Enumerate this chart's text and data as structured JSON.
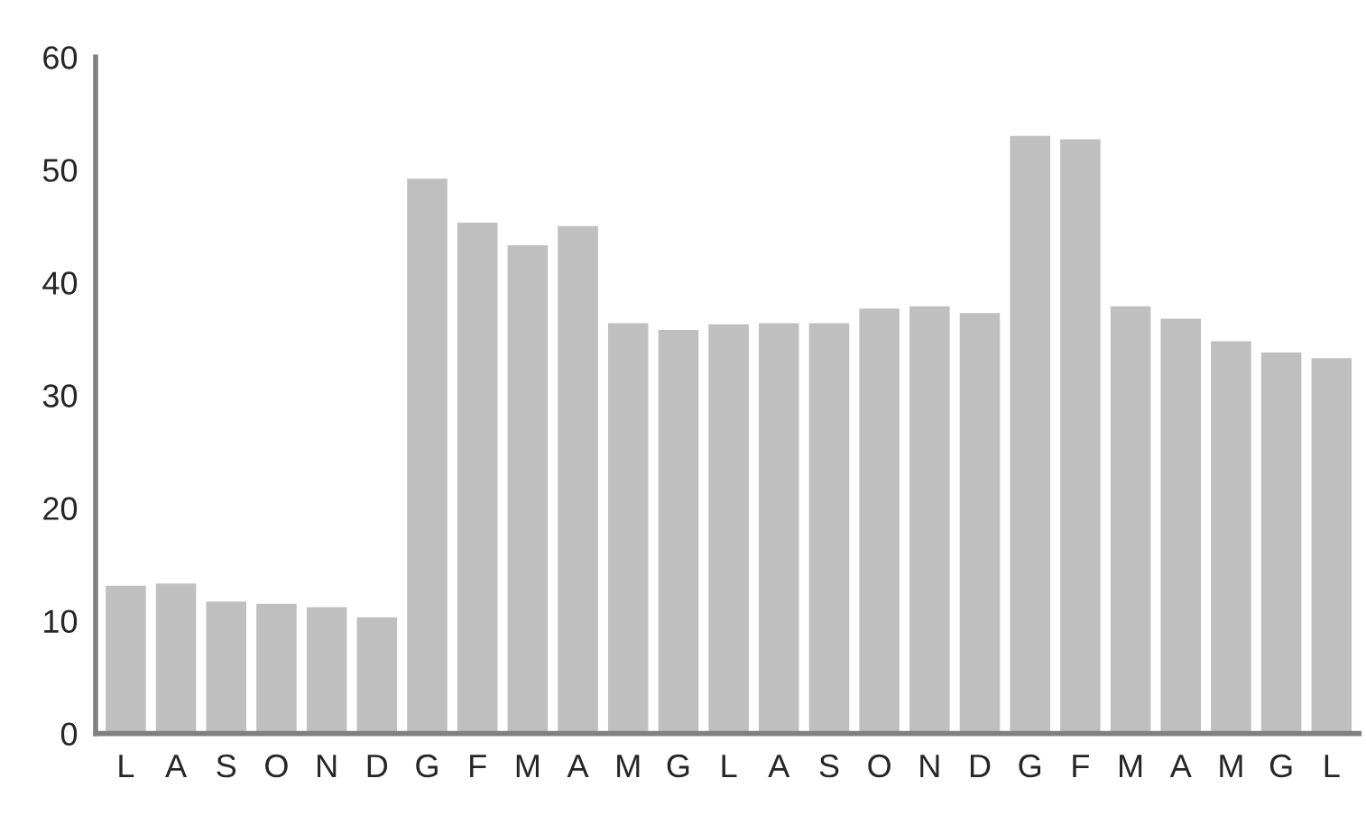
{
  "chart_data": {
    "type": "bar",
    "categories": [
      "L",
      "A",
      "S",
      "O",
      "N",
      "D",
      "G",
      "F",
      "M",
      "A",
      "M",
      "G",
      "L",
      "A",
      "S",
      "O",
      "N",
      "D",
      "G",
      "F",
      "M",
      "A",
      "M",
      "G",
      "L"
    ],
    "values": [
      13.1,
      13.3,
      11.7,
      11.5,
      11.2,
      10.3,
      49.2,
      45.3,
      43.3,
      45.0,
      36.4,
      35.8,
      36.3,
      36.4,
      36.4,
      37.7,
      37.9,
      37.3,
      53.0,
      52.7,
      37.9,
      36.8,
      34.8,
      33.8,
      33.3
    ],
    "color": "#bfbfbf",
    "ylim": [
      0,
      60
    ],
    "yticks": [
      0,
      10,
      20,
      30,
      40,
      50,
      60
    ],
    "grid": false,
    "legend": false
  }
}
